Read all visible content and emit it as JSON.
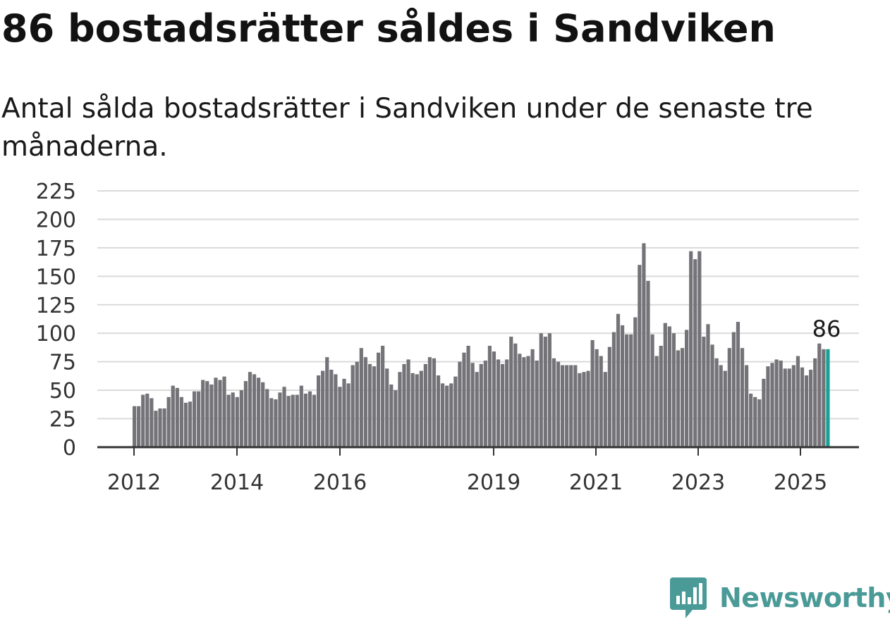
{
  "title": "86 bostadsrätter såldes i Sandviken",
  "subtitle": "Antal sålda bostadsrätter i Sandviken under de senaste tre månaderna.",
  "brand": {
    "name": "Newsworthy",
    "color": "#4a9a97"
  },
  "chart_data": {
    "type": "bar",
    "title": "86 bostadsrätter såldes i Sandviken",
    "subtitle": "Antal sålda bostadsrätter i Sandviken under de senaste tre månaderna.",
    "xlabel": "",
    "ylabel": "",
    "ylim": [
      0,
      225
    ],
    "yticks": [
      0,
      25,
      50,
      75,
      100,
      125,
      150,
      175,
      200,
      225
    ],
    "xticks": [
      "2012",
      "2014",
      "2016",
      "2019",
      "2021",
      "2023",
      "2025"
    ],
    "grid": true,
    "bar_color": "#747378",
    "highlight_color": "#1aa197",
    "highlight_label": "86",
    "values": [
      36,
      36,
      46,
      47,
      43,
      32,
      34,
      34,
      44,
      54,
      52,
      44,
      39,
      40,
      49,
      49,
      59,
      58,
      55,
      61,
      59,
      62,
      46,
      48,
      44,
      50,
      58,
      66,
      64,
      61,
      57,
      51,
      43,
      42,
      48,
      53,
      45,
      46,
      46,
      54,
      47,
      49,
      46,
      63,
      67,
      79,
      68,
      64,
      53,
      60,
      56,
      72,
      75,
      87,
      79,
      73,
      71,
      83,
      89,
      69,
      55,
      50,
      66,
      73,
      77,
      65,
      64,
      67,
      73,
      79,
      78,
      63,
      56,
      54,
      56,
      62,
      75,
      83,
      89,
      74,
      66,
      73,
      76,
      89,
      84,
      77,
      73,
      77,
      97,
      91,
      82,
      79,
      80,
      86,
      76,
      100,
      97,
      100,
      78,
      75,
      72,
      72,
      72,
      72,
      65,
      66,
      67,
      94,
      86,
      80,
      66,
      88,
      101,
      117,
      107,
      99,
      99,
      114,
      160,
      179,
      146,
      99,
      80,
      89,
      109,
      106,
      100,
      85,
      87,
      103,
      172,
      165,
      172,
      97,
      108,
      90,
      78,
      72,
      67,
      87,
      101,
      110,
      87,
      72,
      47,
      44,
      42,
      60,
      71,
      74,
      77,
      76,
      69,
      69,
      72,
      80,
      70,
      63,
      68,
      78,
      91,
      86,
      86
    ]
  }
}
